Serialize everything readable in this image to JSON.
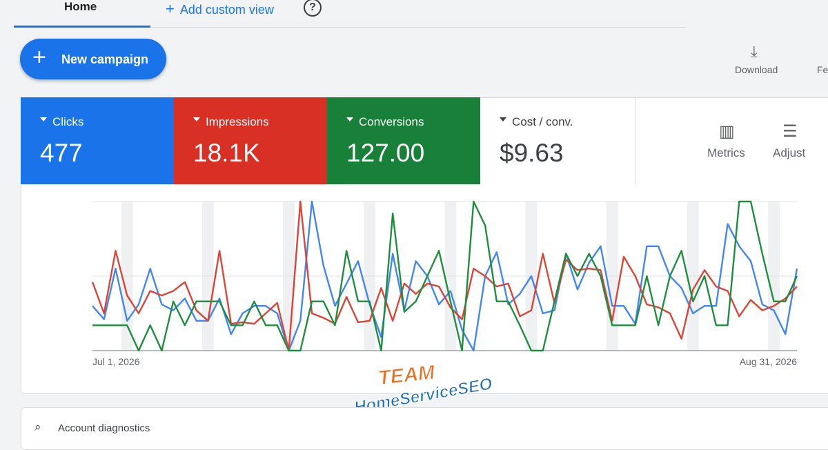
{
  "tabs": {
    "home": "Home",
    "add": "Add custom view",
    "help": "?"
  },
  "new_campaign": "New campaign",
  "toolbar": {
    "download": "Download",
    "feedback": "Fe"
  },
  "cost_card": {
    "label": "Cost / conv.",
    "value": "$9.63"
  },
  "tools": {
    "metrics": "Metrics",
    "adjust": "Adjust"
  },
  "logo": {
    "top": "TEAM",
    "bottom": "HomeServiceSEO"
  },
  "diagnostics": "Account diagnostics",
  "chart_data": {
    "type": "line",
    "categories": [
      "Jul 1, 2026",
      null,
      null,
      null,
      null,
      null,
      null,
      null,
      null,
      null,
      null,
      null,
      null,
      null,
      null,
      null,
      null,
      null,
      null,
      null,
      null,
      null,
      null,
      null,
      null,
      null,
      null,
      null,
      null,
      null,
      null,
      null,
      null,
      null,
      null,
      null,
      null,
      null,
      null,
      null,
      null,
      null,
      null,
      null,
      null,
      null,
      null,
      null,
      null,
      null,
      null,
      null,
      null,
      null,
      null,
      null,
      null,
      null,
      null,
      null,
      null,
      "Aug 31, 2026"
    ],
    "ylim": [
      0,
      100
    ],
    "grid": true,
    "series": [
      {
        "name": "Clicks",
        "total": "477",
        "card_color": "#1a73e8",
        "color": "#4285f4",
        "values": [
          30,
          21,
          55,
          20,
          31,
          55,
          31,
          27,
          35,
          20,
          20,
          35,
          11,
          25,
          30,
          30,
          25,
          0,
          20,
          100,
          57,
          30,
          45,
          60,
          31,
          9,
          65,
          27,
          60,
          50,
          31,
          40,
          14,
          0,
          50,
          66,
          31,
          38,
          50,
          25,
          27,
          65,
          41,
          59,
          70,
          30,
          30,
          18,
          70,
          70,
          50,
          42,
          25,
          30,
          30,
          85,
          70,
          60,
          31,
          27,
          11,
          55
        ]
      },
      {
        "name": "Impressions",
        "total": "18.1K",
        "card_color": "#d93025",
        "color": "#db4437",
        "values": [
          46,
          25,
          67,
          37,
          25,
          40,
          37,
          40,
          46,
          27,
          20,
          67,
          18,
          19,
          18,
          25,
          32,
          0,
          100,
          25,
          22,
          18,
          36,
          19,
          20,
          42,
          20,
          45,
          38,
          45,
          43,
          29,
          21,
          55,
          50,
          43,
          45,
          23,
          27,
          65,
          32,
          61,
          54,
          55,
          54,
          20,
          63,
          50,
          31,
          29,
          25,
          8,
          41,
          54,
          43,
          40,
          23,
          34,
          27,
          30,
          35,
          43
        ]
      },
      {
        "name": "Conversions",
        "total": "127.00",
        "card_color": "#188038",
        "color": "#1e8e3e",
        "values": [
          17,
          17,
          17,
          17,
          0,
          17,
          0,
          33,
          17,
          33,
          33,
          33,
          17,
          17,
          33,
          17,
          17,
          0,
          0,
          33,
          33,
          17,
          67,
          33,
          33,
          0,
          92,
          26,
          33,
          50,
          67,
          33,
          0,
          100,
          84,
          33,
          33,
          17,
          0,
          0,
          33,
          65,
          50,
          65,
          50,
          17,
          17,
          17,
          50,
          17,
          50,
          67,
          33,
          50,
          17,
          17,
          100,
          100,
          65,
          33,
          33,
          50
        ]
      }
    ]
  }
}
